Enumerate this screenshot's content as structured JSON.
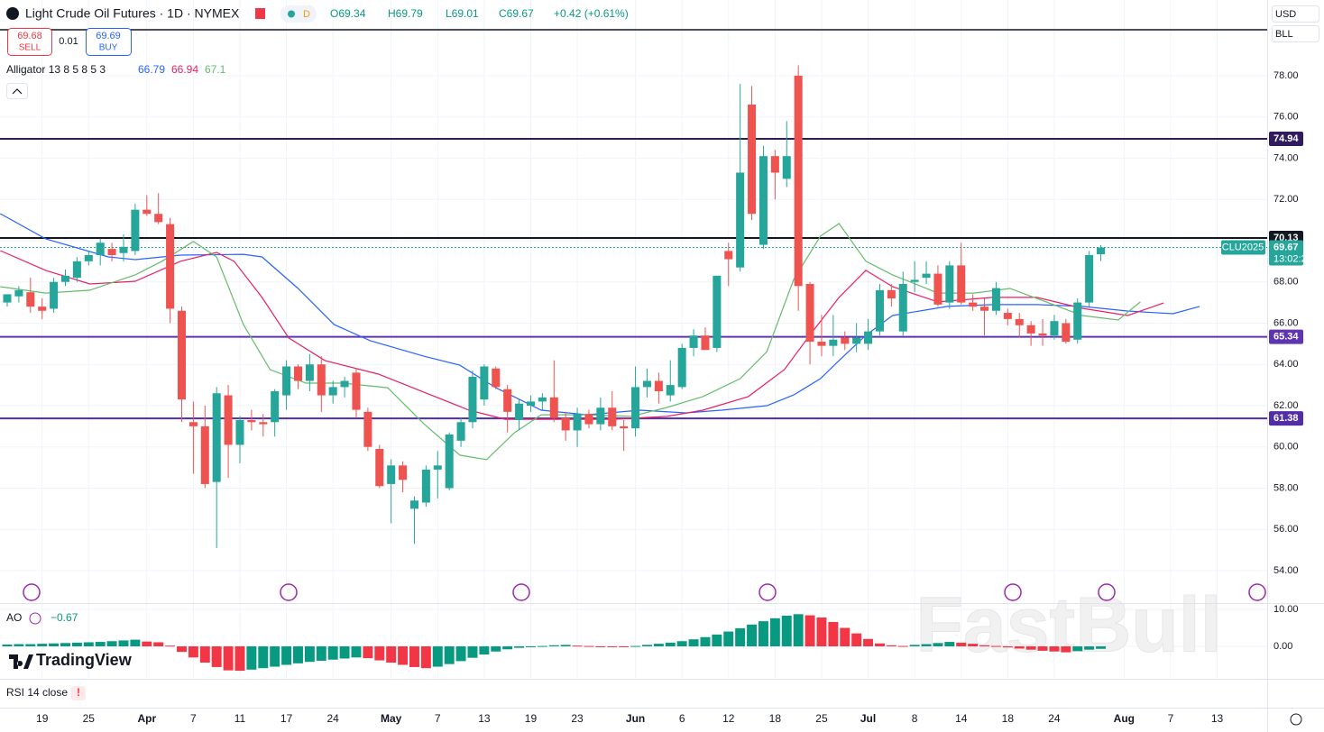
{
  "header": {
    "title": "Light Crude Oil Futures · 1D · NYMEX",
    "badge": "D",
    "open": "O69.34",
    "high": "H69.79",
    "low": "L69.01",
    "close": "C69.67",
    "change": "+0.42 (+0.61%)"
  },
  "trade": {
    "sell_price": 69.68,
    "sell": "SELL",
    "spread": 0.01,
    "buy_price": 69.69,
    "buy": "BUY"
  },
  "indicators": {
    "alligator": "Alligator 13 8 5 8 5 3",
    "ao": "AO",
    "ao_value": "−0.67",
    "rsi": "RSI 14 close",
    "rsi_alert": "!"
  },
  "currency": "USD",
  "unit": "BLL",
  "symbol": "CLU2025",
  "countdown": "13:02:22",
  "logo": "TradingView",
  "watermark": "FastBull",
  "chart_data": [
    {
      "type": "candlestick",
      "up_color": "#26a69a",
      "down_color": "#ef5350",
      "grid": true,
      "xlim": [
        -0.62,
        108.3
      ],
      "xticks": [
        {
          "value": 3,
          "label": "19"
        },
        {
          "value": 7,
          "label": "25"
        },
        {
          "value": 12,
          "label": "Apr"
        },
        {
          "value": 16,
          "label": "7"
        },
        {
          "value": 20,
          "label": "11"
        },
        {
          "value": 24,
          "label": "17"
        },
        {
          "value": 28,
          "label": "24"
        },
        {
          "value": 33,
          "label": "May"
        },
        {
          "value": 37,
          "label": "7"
        },
        {
          "value": 41,
          "label": "13"
        },
        {
          "value": 45,
          "label": "19"
        },
        {
          "value": 49,
          "label": "23"
        },
        {
          "value": 54,
          "label": "Jun"
        },
        {
          "value": 58,
          "label": "6"
        },
        {
          "value": 62,
          "label": "12"
        },
        {
          "value": 66,
          "label": "18"
        },
        {
          "value": 70,
          "label": "25"
        },
        {
          "value": 74,
          "label": "Jul"
        },
        {
          "value": 78,
          "label": "8"
        },
        {
          "value": 82,
          "label": "14"
        },
        {
          "value": 86,
          "label": "18"
        },
        {
          "value": 90,
          "label": "24"
        },
        {
          "value": 96,
          "label": "Aug"
        },
        {
          "value": 100,
          "label": "7"
        },
        {
          "value": 104,
          "label": "13"
        }
      ],
      "ylim": [
        52.47,
        81.67
      ],
      "yticks": [
        {
          "value": 54,
          "label": "54.00"
        },
        {
          "value": 56,
          "label": "56.00"
        },
        {
          "value": 58,
          "label": "58.00"
        },
        {
          "value": 60,
          "label": "60.00"
        },
        {
          "value": 62,
          "label": "62.00"
        },
        {
          "value": 64,
          "label": "64.00"
        },
        {
          "value": 66,
          "label": "66.00"
        },
        {
          "value": 68,
          "label": "68.00"
        },
        {
          "value": 70,
          "label": "70.00"
        },
        {
          "value": 72,
          "label": "72.00"
        },
        {
          "value": 74,
          "label": "74.00"
        },
        {
          "value": 76,
          "label": "76.00"
        },
        {
          "value": 78,
          "label": "78.00"
        }
      ],
      "open": [
        67.0,
        67.3,
        67.5,
        66.8,
        66.7,
        68.0,
        68.2,
        69.0,
        69.3,
        69.6,
        69.4,
        69.5,
        71.5,
        71.3,
        70.8,
        66.6,
        61.2,
        61.0,
        58.3,
        62.5,
        60.1,
        61.3,
        61.2,
        61.2,
        62.5,
        63.9,
        63.2,
        64.0,
        62.5,
        62.9,
        63.6,
        61.7,
        59.9,
        58.2,
        59.1,
        57.0,
        57.3,
        58.9,
        58.0,
        60.3,
        61.2,
        62.3,
        63.8,
        62.8,
        61.3,
        62.0,
        62.2,
        62.4,
        61.4,
        60.8,
        61.6,
        61.1,
        61.9,
        61.0,
        60.9,
        62.9,
        63.2,
        62.5,
        62.9,
        64.8,
        65.4,
        64.8,
        69.5,
        68.7,
        76.6,
        69.8,
        74.1,
        73.0,
        78.0,
        67.9,
        65.1,
        64.9,
        65.3,
        65.0,
        65.0,
        65.6,
        67.6,
        65.6,
        68.0,
        68.2,
        68.4,
        67.0,
        68.8,
        67.0,
        66.8,
        66.6,
        66.5,
        66.2,
        65.9,
        65.5,
        65.4,
        66.0,
        65.2,
        67.0,
        69.34
      ],
      "high": [
        67.4,
        67.8,
        68.2,
        67.2,
        68.2,
        68.6,
        69.2,
        69.5,
        70.1,
        69.9,
        70.3,
        71.8,
        72.2,
        72.3,
        71.1,
        66.8,
        62.2,
        62.0,
        62.9,
        63.0,
        61.5,
        61.8,
        61.6,
        62.8,
        64.2,
        64.0,
        64.5,
        64.4,
        63.2,
        63.4,
        63.8,
        61.9,
        60.1,
        59.4,
        59.3,
        57.6,
        59.1,
        59.8,
        60.7,
        61.4,
        63.7,
        64.0,
        63.9,
        63.0,
        62.3,
        62.5,
        62.6,
        64.2,
        61.7,
        61.9,
        61.8,
        62.4,
        62.7,
        61.3,
        63.9,
        63.8,
        63.6,
        64.2,
        65.0,
        65.7,
        65.8,
        68.3,
        69.9,
        77.6,
        77.5,
        74.6,
        74.4,
        75.8,
        78.5,
        68.0,
        66.4,
        66.4,
        65.6,
        66.0,
        66.2,
        67.9,
        67.9,
        68.5,
        69.0,
        69.0,
        68.8,
        69.0,
        69.9,
        67.4,
        67.2,
        68.0,
        66.7,
        66.5,
        66.1,
        66.2,
        66.4,
        66.2,
        67.2,
        69.5,
        69.79
      ],
      "low": [
        66.8,
        67.0,
        66.5,
        66.2,
        66.5,
        67.8,
        68.0,
        68.8,
        68.8,
        69.0,
        69.0,
        69.3,
        71.2,
        70.8,
        66.0,
        61.2,
        58.7,
        58.0,
        55.1,
        58.5,
        59.2,
        60.8,
        60.5,
        60.5,
        61.8,
        62.8,
        62.7,
        61.7,
        62.1,
        62.4,
        61.4,
        59.8,
        58.0,
        56.3,
        57.8,
        55.3,
        57.1,
        57.5,
        57.9,
        60.0,
        60.9,
        62.0,
        62.8,
        60.7,
        60.8,
        61.7,
        61.8,
        61.2,
        60.3,
        60.0,
        60.9,
        60.8,
        60.8,
        59.8,
        60.5,
        62.4,
        62.1,
        62.2,
        62.8,
        64.4,
        64.7,
        64.6,
        67.8,
        68.5,
        71.0,
        69.6,
        72.0,
        72.6,
        66.6,
        64.0,
        64.4,
        64.4,
        64.7,
        64.6,
        64.7,
        65.4,
        66.8,
        65.4,
        67.5,
        67.9,
        66.8,
        66.7,
        66.9,
        66.6,
        65.4,
        66.4,
        65.9,
        65.3,
        64.9,
        64.9,
        65.2,
        65.0,
        65.0,
        66.8,
        69.01
      ],
      "close": [
        67.4,
        67.6,
        66.8,
        66.6,
        68.0,
        68.3,
        69.0,
        69.3,
        69.9,
        69.3,
        69.7,
        71.5,
        71.3,
        70.9,
        66.7,
        62.3,
        61.0,
        58.2,
        62.6,
        60.1,
        61.3,
        61.2,
        61.1,
        62.7,
        63.9,
        63.2,
        64.0,
        62.5,
        62.9,
        63.2,
        61.8,
        60.0,
        58.1,
        59.1,
        58.4,
        57.4,
        58.9,
        59.1,
        60.6,
        61.2,
        63.4,
        63.9,
        62.9,
        61.7,
        62.1,
        62.2,
        62.4,
        61.4,
        60.8,
        61.6,
        61.1,
        61.9,
        61.0,
        60.9,
        62.9,
        63.2,
        62.7,
        63.0,
        64.8,
        65.4,
        64.7,
        68.3,
        69.1,
        73.3,
        71.3,
        74.1,
        73.3,
        74.1,
        67.8,
        65.1,
        64.9,
        65.2,
        65.0,
        65.3,
        65.6,
        67.6,
        67.2,
        67.9,
        68.1,
        68.4,
        66.9,
        68.8,
        67.0,
        66.8,
        66.6,
        67.7,
        66.2,
        65.9,
        65.5,
        65.4,
        66.1,
        65.1,
        67.0,
        69.3,
        69.67
      ],
      "last_color": "#26a69a",
      "series": [
        {
          "color": "#2962ff",
          "legend_value": 66.79,
          "x": [
            -0.6,
            3.3,
            8.7,
            11,
            14.9,
            20.3,
            21.9,
            25,
            28.1,
            31.2,
            35.8,
            38.9,
            42,
            45.9,
            49.8,
            54.4,
            58.3,
            61.4,
            65.3,
            67.6,
            69.9,
            71.5,
            73.8,
            76.1,
            80.8,
            84.7,
            88.5,
            92.4,
            96.3,
            100.2,
            102.5
          ],
          "values": [
            71.31,
            70.09,
            69.21,
            69.08,
            69.3,
            69.34,
            69.21,
            67.68,
            65.93,
            65.15,
            64.4,
            63.96,
            62.87,
            61.78,
            61.56,
            61.78,
            61.65,
            61.78,
            62.0,
            62.52,
            63.31,
            64.19,
            65.41,
            66.37,
            66.81,
            66.9,
            66.9,
            66.81,
            66.59,
            66.46,
            66.81
          ]
        },
        {
          "color": "#e91e63",
          "legend_value": 66.94,
          "x": [
            -0.6,
            3.3,
            7.1,
            11.0,
            14.9,
            18.0,
            19.5,
            21.9,
            24.2,
            27.3,
            31.9,
            35.8,
            39.7,
            42.8,
            47.4,
            52.1,
            56.7,
            59.8,
            63.7,
            66.8,
            69.1,
            71.5,
            73.8,
            76.1,
            80.0,
            84.7,
            88.5,
            92.4,
            96.3,
            99.4
          ],
          "values": [
            69.52,
            68.56,
            67.9,
            68.03,
            69.0,
            69.43,
            69.0,
            67.25,
            65.28,
            64.19,
            63.53,
            62.66,
            61.78,
            61.34,
            61.34,
            61.34,
            61.48,
            61.78,
            62.44,
            63.75,
            65.5,
            67.25,
            68.56,
            67.77,
            67.03,
            67.25,
            67.25,
            66.72,
            66.37,
            66.98
          ]
        },
        {
          "color": "#66bb6a",
          "legend_value": 67.1,
          "x": [
            -0.6,
            3.3,
            7.1,
            11.0,
            13.3,
            16.0,
            18.0,
            20.3,
            22.6,
            25.7,
            28.8,
            32.7,
            35.8,
            38.9,
            41.2,
            43.6,
            45.9,
            49.8,
            53.6,
            56.7,
            59.8,
            63.0,
            65.3,
            67.6,
            69.9,
            71.5,
            73.8,
            76.1,
            80.0,
            83.1,
            86.2,
            89.3,
            92.4,
            95.5,
            97.4
          ],
          "values": [
            67.77,
            67.46,
            67.6,
            68.34,
            69.0,
            69.96,
            69.21,
            65.93,
            63.75,
            63.09,
            63.09,
            62.87,
            61.13,
            59.6,
            59.38,
            60.69,
            61.56,
            61.56,
            61.48,
            61.91,
            62.44,
            63.31,
            64.62,
            68.12,
            70.22,
            70.83,
            69.0,
            68.34,
            67.46,
            67.46,
            67.68,
            67.03,
            66.37,
            66.15,
            67.03
          ]
        }
      ],
      "levels": [
        {
          "value": 74.94,
          "color": "#311b5e"
        },
        {
          "value": 70.13,
          "color": "#131722"
        },
        {
          "value": 65.34,
          "color": "#5e35b1"
        },
        {
          "value": 61.38,
          "color": "#512da8"
        }
      ]
    },
    {
      "type": "ao",
      "up_color": "#089981",
      "down_color": "#f23645",
      "ylim": [
        -8.54,
        11.46
      ],
      "yticks": [
        {
          "value": 0,
          "label": "0.00"
        },
        {
          "value": 10,
          "label": "10.00"
        }
      ],
      "values": [
        0.5,
        0.6,
        0.6,
        0.7,
        0.8,
        0.9,
        1.0,
        1.1,
        1.2,
        1.4,
        1.6,
        1.8,
        1.3,
        1.1,
        0.2,
        -1.5,
        -3.0,
        -4.4,
        -5.6,
        -6.5,
        -6.6,
        -6.3,
        -5.9,
        -5.5,
        -5.0,
        -4.6,
        -4.2,
        -3.9,
        -3.6,
        -3.3,
        -3.0,
        -3.2,
        -3.8,
        -4.4,
        -5.0,
        -5.6,
        -5.9,
        -5.5,
        -4.8,
        -4.0,
        -3.1,
        -2.2,
        -1.4,
        -0.8,
        -0.4,
        -0.1,
        0.1,
        0.3,
        0.4,
        0.2,
        0.1,
        0.0,
        -0.1,
        -0.2,
        0.1,
        0.4,
        0.7,
        1.0,
        1.4,
        1.9,
        2.5,
        3.2,
        4.0,
        4.9,
        5.9,
        6.8,
        7.6,
        8.3,
        8.7,
        8.4,
        7.8,
        6.6,
        5.0,
        3.5,
        2.0,
        0.8,
        0.3,
        0.1,
        0.4,
        0.6,
        0.9,
        1.2,
        1.0,
        0.7,
        0.3,
        0.1,
        -0.3,
        -0.6,
        -0.9,
        -1.2,
        -1.4,
        -1.6,
        -1.3,
        -0.9,
        -0.67
      ]
    }
  ]
}
